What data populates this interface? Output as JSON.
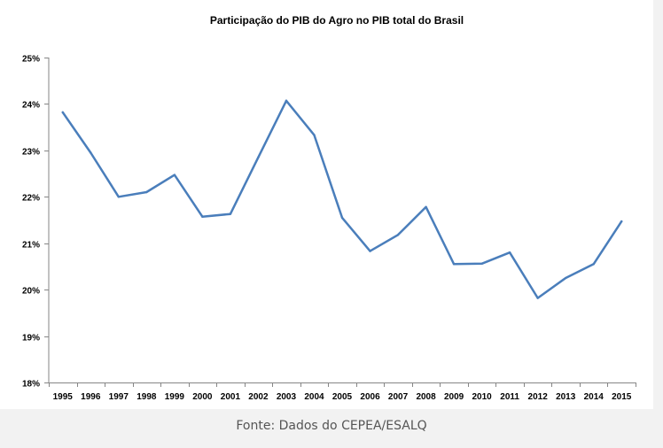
{
  "chart_data": {
    "type": "line",
    "title": "Participação do PIB do Agro no PIB total do Brasil",
    "xlabel": "",
    "ylabel": "",
    "categories": [
      "1995",
      "1996",
      "1997",
      "1998",
      "1999",
      "2000",
      "2001",
      "2002",
      "2003",
      "2004",
      "2005",
      "2006",
      "2007",
      "2008",
      "2009",
      "2010",
      "2011",
      "2012",
      "2013",
      "2014",
      "2015"
    ],
    "series": [
      {
        "values": [
          23.82,
          22.95,
          22.0,
          22.1,
          22.47,
          21.57,
          21.63,
          22.85,
          24.07,
          23.33,
          21.55,
          20.83,
          21.18,
          21.78,
          20.55,
          20.56,
          20.8,
          19.82,
          20.25,
          20.55,
          21.47
        ]
      }
    ],
    "ylim": [
      18,
      25
    ],
    "yticks": [
      18,
      19,
      20,
      21,
      22,
      23,
      24,
      25
    ],
    "ytick_labels": [
      "18%",
      "19%",
      "20%",
      "21%",
      "22%",
      "23%",
      "24%",
      "25%"
    ],
    "grid": false,
    "legend": "none",
    "line_color": "#4a7ebb"
  },
  "caption": "Fonte: Dados do CEPEA/ESALQ"
}
